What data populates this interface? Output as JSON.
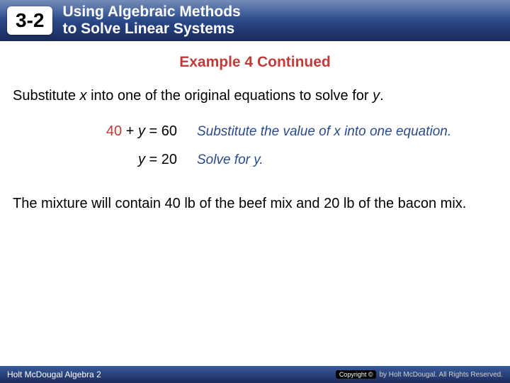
{
  "header": {
    "section_number": "3-2",
    "title_line1": "Using Algebraic Methods",
    "title_line2": "to Solve Linear Systems"
  },
  "content": {
    "example_title": "Example 4 Continued",
    "instruction_pre": "Substitute ",
    "instruction_var": "x",
    "instruction_mid": " into one of the original equations to solve for ",
    "instruction_var2": "y",
    "instruction_post": ".",
    "steps": [
      {
        "eq_red": "40",
        "eq_mid": " + ",
        "eq_var": "y",
        "eq_post": " = 60",
        "explain": "Substitute the value of x into one equation."
      },
      {
        "eq_red": "",
        "eq_mid": "",
        "eq_var": "y",
        "eq_post": " = 20",
        "explain": "Solve for y."
      }
    ],
    "conclusion": "The mixture will contain 40 lb of the beef mix and 20 lb of the bacon mix."
  },
  "footer": {
    "left": "Holt McDougal Algebra 2",
    "copyright_badge": "Copyright ©",
    "right": "by Holt McDougal. All Rights Reserved."
  },
  "colors": {
    "header_grad_top": "#3a5a9a",
    "header_grad_bottom": "#1a2a5a",
    "accent_red": "#c23b3b",
    "explain_blue": "#2a4a8a",
    "background": "#ffffff"
  }
}
